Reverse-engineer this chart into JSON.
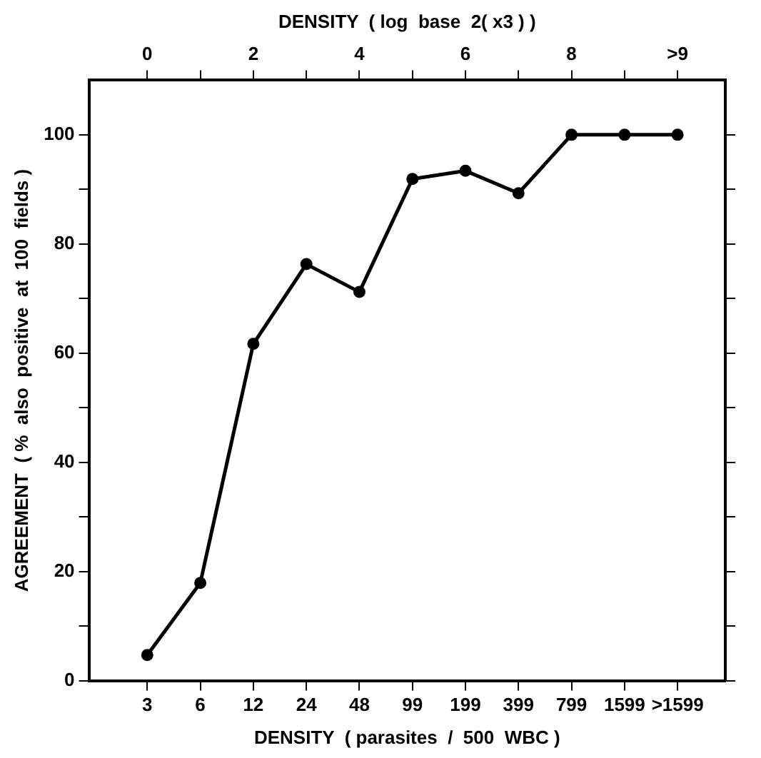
{
  "chart_data": {
    "type": "line",
    "xlabel": "DENSITY  ( parasites  /  500  WBC )",
    "x2label": "DENSITY  ( log  base  2( x3 ) )",
    "ylabel": "AGREEMENT  ( %  also  positive  at  100  fields )",
    "categories": [
      "3",
      "6",
      "12",
      "24",
      "48",
      "99",
      "199",
      "399",
      "799",
      "1599",
      ">1599"
    ],
    "values": [
      4.7,
      17.9,
      61.7,
      76.3,
      71.2,
      91.9,
      93.4,
      89.3,
      100,
      100,
      100
    ],
    "color": "#000000",
    "marker": "circle",
    "line_style": "solid",
    "grid": false,
    "legend": false,
    "ylim": [
      0,
      110
    ],
    "yticks": [
      0,
      {
        "value": 10,
        "label": null
      },
      20,
      {
        "value": 30,
        "label": null
      },
      40,
      {
        "value": 50,
        "label": null
      },
      60,
      {
        "value": 70,
        "label": null
      },
      80,
      {
        "value": 90,
        "label": null
      },
      100
    ],
    "x2lim": [
      -1.1,
      10.9
    ],
    "x2ticks": [
      0,
      {
        "value": 1,
        "label": null
      },
      2,
      {
        "value": 3,
        "label": null
      },
      4,
      {
        "value": 5,
        "label": null
      },
      6,
      {
        "value": 7,
        "label": null
      },
      8,
      {
        "value": 9,
        "label": null
      },
      {
        "value": 10,
        "label": ">9"
      }
    ]
  }
}
